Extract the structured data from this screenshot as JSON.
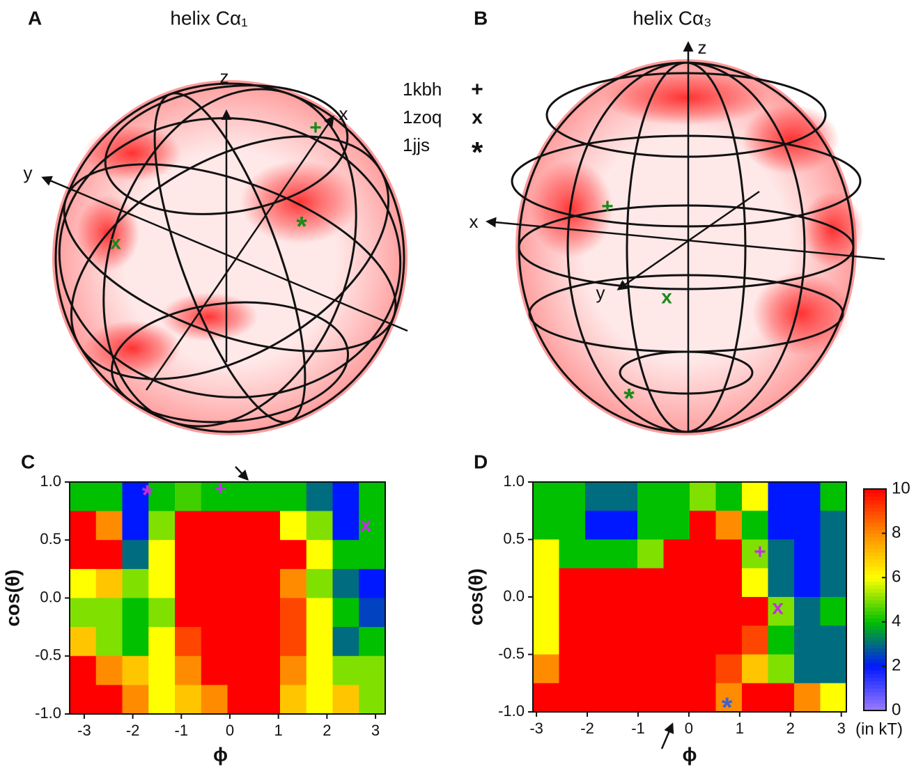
{
  "spheres": [
    {
      "letter": "A",
      "title": "helix Cα₁",
      "axes": [
        "x",
        "y",
        "z"
      ]
    },
    {
      "letter": "B",
      "title": "helix Cα₃",
      "axes": [
        "x",
        "y",
        "z"
      ]
    }
  ],
  "legend": [
    {
      "label": "1kbh",
      "symbol": "+"
    },
    {
      "label": "1zoq",
      "symbol": "x"
    },
    {
      "label": "1jjs",
      "symbol": "*"
    }
  ],
  "chart_data": [
    {
      "type": "heatmap",
      "letter": "C",
      "xlabel": "ϕ",
      "ylabel": "cos(θ)",
      "xlim": [
        -3.3,
        3.2
      ],
      "ylim": [
        -1,
        1
      ],
      "xticks": [
        -3,
        -2,
        -1,
        0,
        1,
        2,
        3
      ],
      "yticks": [
        {
          "value": 1,
          "label": "1.0"
        },
        {
          "value": 0.5,
          "label": "0.5"
        },
        {
          "value": 0,
          "label": "0.0"
        },
        {
          "value": -0.5,
          "label": "-0.5"
        },
        {
          "value": -1,
          "label": "-1.0"
        }
      ],
      "zlim": [
        0,
        10
      ],
      "colormap": [
        "#9c7cff",
        "#0018ff",
        "#00c000",
        "#ffff00",
        "#ff8c00",
        "#ff0000"
      ],
      "z": [
        [
          4,
          4,
          2,
          4,
          4.5,
          4,
          4,
          4,
          4,
          3,
          2,
          4
        ],
        [
          10,
          8,
          2,
          5,
          10,
          10,
          10,
          10,
          6,
          5,
          2,
          4
        ],
        [
          10,
          10,
          3,
          6,
          10,
          10,
          10,
          10,
          10,
          6,
          4,
          4
        ],
        [
          6,
          7,
          5,
          6,
          10,
          10,
          10,
          10,
          8,
          5,
          3,
          2
        ],
        [
          5,
          5,
          4,
          5,
          10,
          10,
          10,
          10,
          9,
          6,
          4,
          2.5
        ],
        [
          7,
          5,
          4,
          6,
          9,
          10,
          10,
          10,
          9,
          6,
          3,
          4
        ],
        [
          10,
          8,
          7,
          6,
          8,
          10,
          10,
          10,
          8,
          6,
          5,
          5
        ],
        [
          10,
          10,
          8,
          6,
          7,
          8,
          10,
          10,
          7,
          6,
          7,
          5
        ]
      ],
      "markers": [
        {
          "symbol": "+",
          "x": -0.2,
          "y": 0.93,
          "color": "#c030e0"
        },
        {
          "symbol": "*",
          "x": -1.7,
          "y": 0.92,
          "color": "#c030e0"
        },
        {
          "symbol": "x",
          "x": 2.8,
          "y": 0.62,
          "color": "#c030e0"
        }
      ]
    },
    {
      "type": "heatmap",
      "letter": "D",
      "xlabel": "ϕ",
      "ylabel": "cos(θ)",
      "xlim": [
        -3.07,
        3.1
      ],
      "ylim": [
        -1,
        1
      ],
      "xticks": [
        -3,
        -2,
        -1,
        0,
        1,
        2,
        3
      ],
      "yticks": [
        {
          "value": 1,
          "label": "1.0"
        },
        {
          "value": 0.5,
          "label": "0.5"
        },
        {
          "value": 0,
          "label": "0.0"
        },
        {
          "value": -0.5,
          "label": "-0.5"
        },
        {
          "value": -1,
          "label": "-1.0"
        }
      ],
      "zlim": [
        0,
        10
      ],
      "zticks": [
        0,
        2,
        4,
        6,
        8,
        10
      ],
      "zlabel": "(in kT)",
      "colormap": [
        "#9c7cff",
        "#0018ff",
        "#00c000",
        "#ffff00",
        "#ff8c00",
        "#ff0000"
      ],
      "z": [
        [
          4,
          4,
          3,
          3,
          4,
          4,
          5,
          4,
          6,
          2,
          2,
          4
        ],
        [
          4,
          4,
          2,
          2,
          4,
          4,
          10,
          8,
          4,
          2,
          2,
          3
        ],
        [
          6,
          4,
          4,
          4,
          5,
          10,
          10,
          10,
          5,
          3,
          2,
          3
        ],
        [
          6,
          10,
          10,
          10,
          10,
          10,
          10,
          10,
          6,
          3,
          2,
          3
        ],
        [
          6,
          10,
          10,
          10,
          10,
          10,
          10,
          10,
          10,
          5,
          3,
          4
        ],
        [
          6,
          10,
          10,
          10,
          10,
          10,
          10,
          10,
          9,
          4,
          3,
          3
        ],
        [
          8,
          10,
          10,
          10,
          10,
          10,
          10,
          9,
          7,
          5,
          3,
          3
        ],
        [
          10,
          10,
          10,
          10,
          10,
          10,
          10,
          8,
          10,
          10,
          8,
          6
        ]
      ],
      "markers": [
        {
          "symbol": "+",
          "x": 1.4,
          "y": 0.38,
          "color": "#c030e0"
        },
        {
          "symbol": "x",
          "x": 1.75,
          "y": -0.1,
          "color": "#c030e0"
        },
        {
          "symbol": "*",
          "x": 0.75,
          "y": -0.93,
          "color": "#4060d0"
        }
      ]
    }
  ]
}
